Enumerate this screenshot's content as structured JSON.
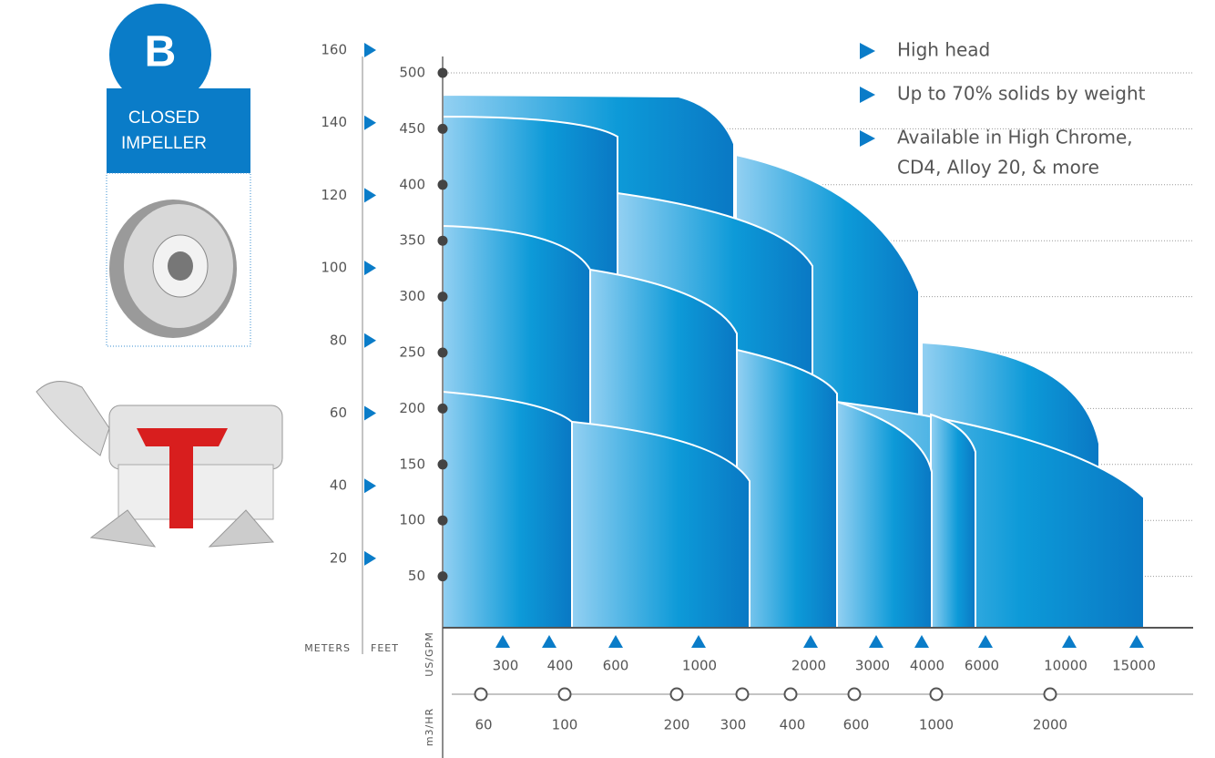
{
  "badge": {
    "letter": "B",
    "label": [
      "CLOSED",
      "IMPELLER"
    ]
  },
  "bullets": [
    [
      "High head"
    ],
    [
      "Up to 70% solids by weight"
    ],
    [
      "Available in High Chrome,",
      "CD4, Alloy 20, & more"
    ]
  ],
  "axes": {
    "meters": {
      "title": "METERS",
      "ticks": [
        160,
        140,
        120,
        100,
        80,
        60,
        40,
        20
      ]
    },
    "feet": {
      "title": "FEET",
      "ticks": [
        500,
        450,
        400,
        350,
        300,
        250,
        200,
        150,
        100,
        50
      ]
    },
    "gpm": {
      "title": "US/GPM",
      "ticks": [
        300,
        400,
        600,
        1000,
        2000,
        3000,
        4000,
        6000,
        10000,
        15000
      ]
    },
    "m3hr": {
      "title": "m3/HR",
      "ticks": [
        60,
        100,
        200,
        300,
        400,
        600,
        1000,
        2000
      ]
    }
  }
}
